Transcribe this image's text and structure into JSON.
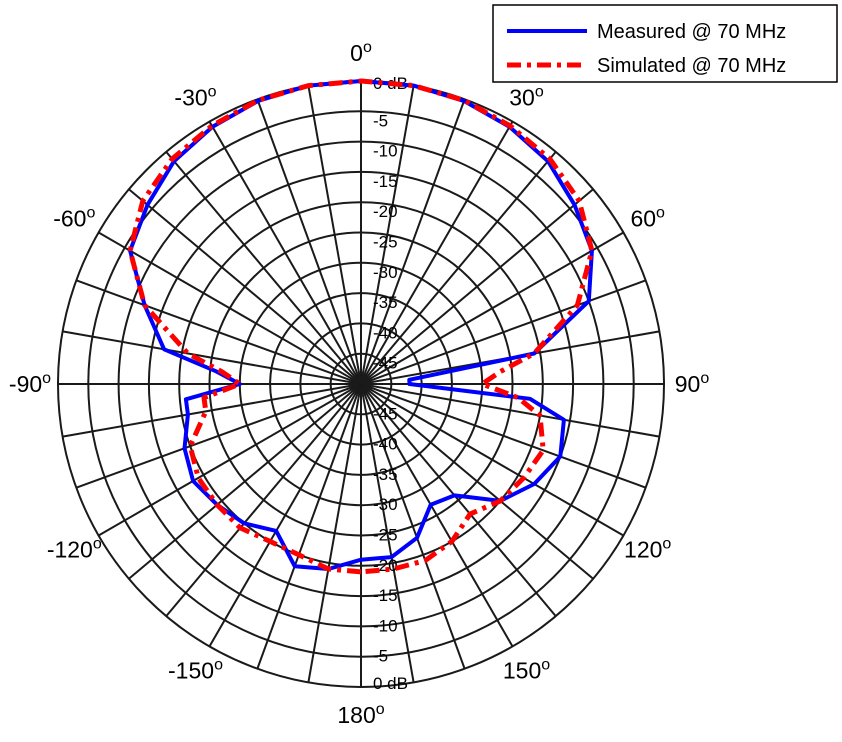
{
  "chart_data": {
    "type": "polar",
    "title": "",
    "radial_axis": {
      "unit": "dB",
      "min_db": -50,
      "max_db": 0,
      "ring_step_db": 5,
      "labels": [
        "0 dB",
        "-5",
        "-10",
        "-15",
        "-20",
        "-25",
        "-30",
        "-35",
        "-40",
        "-45"
      ]
    },
    "angular_axis": {
      "zero_direction": "top",
      "spoke_step_deg": 10,
      "labels": [
        {
          "angle": 0,
          "text": "0",
          "sup": "o"
        },
        {
          "angle": 30,
          "text": "30",
          "sup": "o"
        },
        {
          "angle": 60,
          "text": "60",
          "sup": "o"
        },
        {
          "angle": 90,
          "text": "90",
          "sup": "o"
        },
        {
          "angle": 120,
          "text": "120",
          "sup": "o"
        },
        {
          "angle": 150,
          "text": "150",
          "sup": "o"
        },
        {
          "angle": 180,
          "text": "180",
          "sup": "o"
        },
        {
          "angle": -150,
          "text": "-150",
          "sup": "o"
        },
        {
          "angle": -120,
          "text": "-120",
          "sup": "o"
        },
        {
          "angle": -90,
          "text": "-90",
          "sup": "o"
        },
        {
          "angle": -60,
          "text": "-60",
          "sup": "o"
        },
        {
          "angle": -30,
          "text": "-30",
          "sup": "o"
        }
      ]
    },
    "legend": {
      "position": "top-right"
    },
    "series": [
      {
        "name": "Measured @ 70 MHz",
        "color": "#0000ff",
        "style": "solid",
        "angles": [
          -180,
          -170,
          -160,
          -150,
          -140,
          -130,
          -120,
          -110,
          -100,
          -95,
          -90,
          -85,
          -80,
          -70,
          -60,
          -50,
          -40,
          -30,
          -20,
          -10,
          0,
          10,
          20,
          30,
          40,
          50,
          60,
          70,
          80,
          85,
          90,
          95,
          100,
          110,
          120,
          130,
          140,
          150,
          160,
          170,
          180
        ],
        "values": [
          -21,
          -19,
          -18,
          -22,
          -20,
          -19,
          -18,
          -19,
          -21,
          -21,
          -30,
          -26,
          -17,
          -12,
          -6,
          -4,
          -2,
          -1,
          -0.3,
          0,
          0,
          0,
          -0.3,
          -1,
          -2,
          -4,
          -6,
          -10,
          -21,
          -42,
          -42,
          -22,
          -16,
          -15,
          -17,
          -20,
          -26,
          -27,
          -23,
          -21,
          -21
        ]
      },
      {
        "name": "Simulated @ 70 MHz",
        "color": "#ff0000",
        "style": "dashdot",
        "angles": [
          -180,
          -170,
          -160,
          -150,
          -140,
          -130,
          -120,
          -110,
          -100,
          -95,
          -90,
          -85,
          -80,
          -70,
          -60,
          -50,
          -40,
          -30,
          -20,
          -10,
          0,
          10,
          20,
          30,
          40,
          50,
          60,
          70,
          80,
          85,
          90,
          95,
          100,
          110,
          120,
          130,
          140,
          150,
          160,
          170,
          180
        ],
        "values": [
          -19,
          -19,
          -20,
          -20,
          -19,
          -19,
          -19,
          -20,
          -24,
          -24,
          -30,
          -27,
          -21,
          -12,
          -6,
          -3,
          -1.5,
          -0.8,
          -0.2,
          0,
          0,
          0,
          -0.2,
          -0.8,
          -1.5,
          -3,
          -6,
          -12,
          -21,
          -27,
          -30,
          -24,
          -20,
          -18,
          -19,
          -20,
          -22,
          -20,
          -19,
          -19,
          -19
        ]
      }
    ]
  }
}
